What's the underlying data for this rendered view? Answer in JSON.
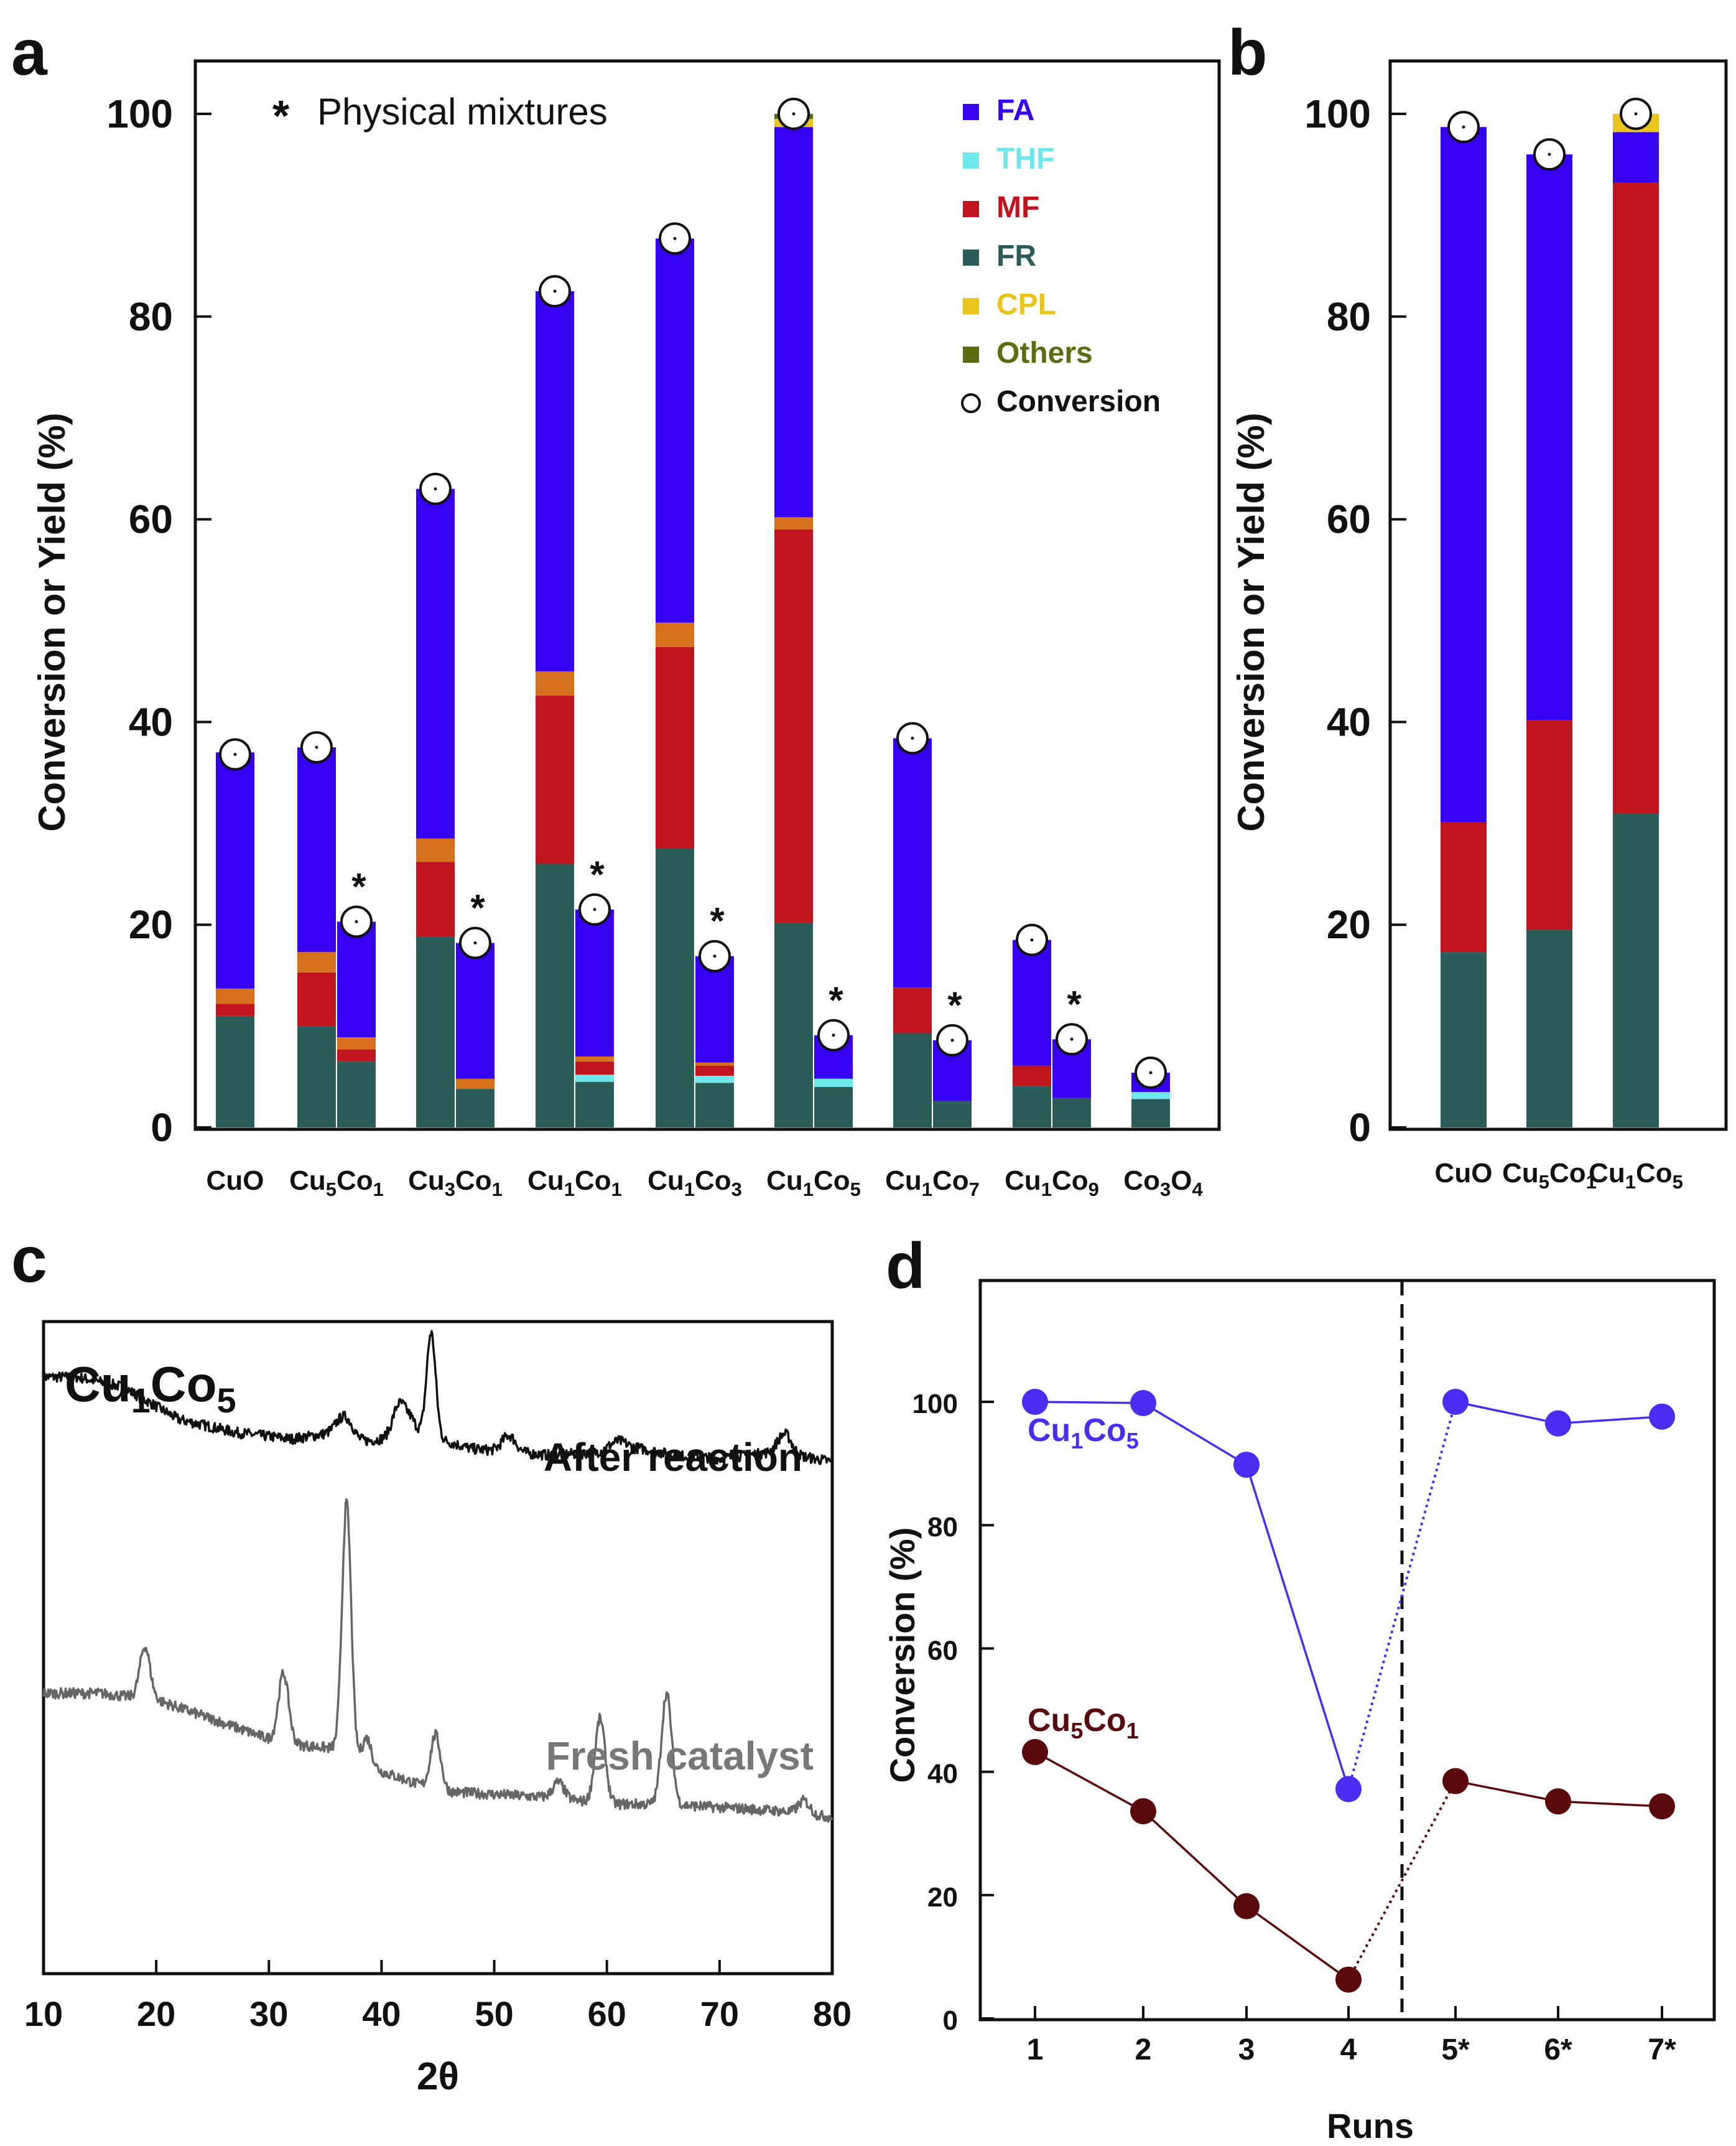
{
  "colors": {
    "FA": "#3600f0",
    "THF": "#6fe8ec",
    "MF": "#c0141e",
    "FR": "#2b5c58",
    "CPL": "#e8c41c",
    "Others": "#5f6b12",
    "OrangeBand": "#d6701c",
    "Cu1Co5_line": "#4b2cf0",
    "Cu5Co1_line": "#5a0a0a",
    "after_line": "#111111",
    "fresh_line": "#666666"
  },
  "chart_data": [
    {
      "panel": "a",
      "type": "bar",
      "stacked": true,
      "ylabel": "Conversion or Yield (%)",
      "ylim": [
        0,
        100
      ],
      "yticks": [
        0,
        20,
        40,
        60,
        80,
        100
      ],
      "annotation": {
        "marker": "*",
        "text": "Physical mixtures"
      },
      "legend": [
        {
          "name": "FA",
          "color_key": "FA",
          "marker": "square"
        },
        {
          "name": "THF",
          "color_key": "THF",
          "marker": "square"
        },
        {
          "name": "MF",
          "color_key": "MF",
          "marker": "square"
        },
        {
          "name": "FR",
          "color_key": "FR",
          "marker": "square"
        },
        {
          "name": "CPL",
          "color_key": "CPL",
          "marker": "square"
        },
        {
          "name": "Others",
          "color_key": "Others",
          "marker": "square"
        },
        {
          "name": "Conversion",
          "color_key": null,
          "marker": "circle"
        }
      ],
      "categories": [
        {
          "base": "CuO",
          "sub1": "",
          "mid": "",
          "sub2": ""
        },
        {
          "base": "Cu",
          "sub1": "5",
          "mid": "Co",
          "sub2": "1"
        },
        {
          "base": "Cu",
          "sub1": "3",
          "mid": "Co",
          "sub2": "1"
        },
        {
          "base": "Cu",
          "sub1": "1",
          "mid": "Co",
          "sub2": "1"
        },
        {
          "base": "Cu",
          "sub1": "1",
          "mid": "Co",
          "sub2": "3"
        },
        {
          "base": "Cu",
          "sub1": "1",
          "mid": "Co",
          "sub2": "5"
        },
        {
          "base": "Cu",
          "sub1": "1",
          "mid": "Co",
          "sub2": "7"
        },
        {
          "base": "Cu",
          "sub1": "1",
          "mid": "Co",
          "sub2": "9"
        },
        {
          "base": "Co",
          "sub1": "3",
          "mid": "O",
          "sub2": "4"
        }
      ],
      "bars": [
        {
          "cat": 0,
          "slot": "main",
          "physical_mixture": false,
          "segments": [
            {
              "s": "FR",
              "v": 11
            },
            {
              "s": "MF",
              "v": 1.2
            },
            {
              "s": "OrangeBand",
              "v": 1.5
            },
            {
              "s": "FA",
              "v": 23.3
            }
          ],
          "conversion": 36.8
        },
        {
          "cat": 1,
          "slot": "main",
          "physical_mixture": false,
          "segments": [
            {
              "s": "FR",
              "v": 10
            },
            {
              "s": "MF",
              "v": 5.3
            },
            {
              "s": "OrangeBand",
              "v": 2
            },
            {
              "s": "FA",
              "v": 20.2
            }
          ],
          "conversion": 37.5
        },
        {
          "cat": 1,
          "slot": "pm",
          "physical_mixture": true,
          "segments": [
            {
              "s": "FR",
              "v": 6.5
            },
            {
              "s": "MF",
              "v": 1.2
            },
            {
              "s": "OrangeBand",
              "v": 1.2
            },
            {
              "s": "FA",
              "v": 11.4
            }
          ],
          "conversion": 20.3
        },
        {
          "cat": 2,
          "slot": "main",
          "physical_mixture": false,
          "segments": [
            {
              "s": "FR",
              "v": 18.8
            },
            {
              "s": "MF",
              "v": 7.4
            },
            {
              "s": "OrangeBand",
              "v": 2.3
            },
            {
              "s": "FA",
              "v": 34.5
            }
          ],
          "conversion": 63
        },
        {
          "cat": 2,
          "slot": "pm",
          "physical_mixture": true,
          "segments": [
            {
              "s": "FR",
              "v": 3.8
            },
            {
              "s": "OrangeBand",
              "v": 1
            },
            {
              "s": "FA",
              "v": 13.4
            }
          ],
          "conversion": 18.2
        },
        {
          "cat": 3,
          "slot": "main",
          "physical_mixture": false,
          "segments": [
            {
              "s": "FR",
              "v": 26
            },
            {
              "s": "MF",
              "v": 16.6
            },
            {
              "s": "OrangeBand",
              "v": 2.4
            },
            {
              "s": "FA",
              "v": 37.5
            }
          ],
          "conversion": 82.5
        },
        {
          "cat": 3,
          "slot": "pm",
          "physical_mixture": true,
          "segments": [
            {
              "s": "FR",
              "v": 4.5
            },
            {
              "s": "THF",
              "v": 0.7
            },
            {
              "s": "MF",
              "v": 1.3
            },
            {
              "s": "OrangeBand",
              "v": 0.5
            },
            {
              "s": "FA",
              "v": 14.5
            }
          ],
          "conversion": 21.5
        },
        {
          "cat": 4,
          "slot": "main",
          "physical_mixture": false,
          "segments": [
            {
              "s": "FR",
              "v": 27.5
            },
            {
              "s": "MF",
              "v": 19.9
            },
            {
              "s": "OrangeBand",
              "v": 2.4
            },
            {
              "s": "FA",
              "v": 37.9
            }
          ],
          "conversion": 87.7
        },
        {
          "cat": 4,
          "slot": "pm",
          "physical_mixture": true,
          "segments": [
            {
              "s": "FR",
              "v": 4.4
            },
            {
              "s": "THF",
              "v": 0.7
            },
            {
              "s": "MF",
              "v": 1
            },
            {
              "s": "OrangeBand",
              "v": 0.3
            },
            {
              "s": "FA",
              "v": 10.5
            }
          ],
          "conversion": 16.9
        },
        {
          "cat": 5,
          "slot": "main",
          "physical_mixture": false,
          "segments": [
            {
              "s": "FR",
              "v": 20.2
            },
            {
              "s": "MF",
              "v": 38.8
            },
            {
              "s": "OrangeBand",
              "v": 1.2
            },
            {
              "s": "FA",
              "v": 38.5
            },
            {
              "s": "CPL",
              "v": 0.8
            },
            {
              "s": "Others",
              "v": 0.5
            }
          ],
          "conversion": 100
        },
        {
          "cat": 5,
          "slot": "pm",
          "physical_mixture": true,
          "segments": [
            {
              "s": "FR",
              "v": 4
            },
            {
              "s": "THF",
              "v": 0.8
            },
            {
              "s": "FA",
              "v": 4.3
            }
          ],
          "conversion": 9.1
        },
        {
          "cat": 6,
          "slot": "main",
          "physical_mixture": false,
          "segments": [
            {
              "s": "FR",
              "v": 9.3
            },
            {
              "s": "MF",
              "v": 4.5
            },
            {
              "s": "FA",
              "v": 24.6
            }
          ],
          "conversion": 38.4
        },
        {
          "cat": 6,
          "slot": "pm",
          "physical_mixture": true,
          "segments": [
            {
              "s": "FR",
              "v": 2.6
            },
            {
              "s": "FA",
              "v": 6
            }
          ],
          "conversion": 8.6
        },
        {
          "cat": 7,
          "slot": "main",
          "physical_mixture": false,
          "segments": [
            {
              "s": "FR",
              "v": 4.1
            },
            {
              "s": "MF",
              "v": 2
            },
            {
              "s": "FA",
              "v": 12.4
            }
          ],
          "conversion": 18.5
        },
        {
          "cat": 7,
          "slot": "pm",
          "physical_mixture": true,
          "segments": [
            {
              "s": "FR",
              "v": 2.9
            },
            {
              "s": "FA",
              "v": 5.8
            }
          ],
          "conversion": 8.7
        },
        {
          "cat": 8,
          "slot": "main",
          "physical_mixture": false,
          "segments": [
            {
              "s": "FR",
              "v": 2.8
            },
            {
              "s": "THF",
              "v": 0.7
            },
            {
              "s": "FA",
              "v": 1.9
            }
          ],
          "conversion": 5.4
        }
      ]
    },
    {
      "panel": "b",
      "type": "bar",
      "stacked": true,
      "ylabel": "Conversion or Yield (%)",
      "ylim": [
        0,
        100
      ],
      "yticks": [
        0,
        20,
        40,
        60,
        80,
        100
      ],
      "categories": [
        {
          "base": "CuO",
          "sub1": "",
          "mid": "",
          "sub2": ""
        },
        {
          "base": "Cu",
          "sub1": "5",
          "mid": "Co",
          "sub2": "1"
        },
        {
          "base": "Cu",
          "sub1": "1",
          "mid": "Co",
          "sub2": "5"
        }
      ],
      "bars": [
        {
          "cat": 0,
          "segments": [
            {
              "s": "FR",
              "v": 17.3
            },
            {
              "s": "MF",
              "v": 12.8
            },
            {
              "s": "FA",
              "v": 68.6
            }
          ],
          "conversion": 98.7
        },
        {
          "cat": 1,
          "segments": [
            {
              "s": "FR",
              "v": 19.5
            },
            {
              "s": "MF",
              "v": 20.7
            },
            {
              "s": "FA",
              "v": 55.8
            }
          ],
          "conversion": 96
        },
        {
          "cat": 2,
          "segments": [
            {
              "s": "FR",
              "v": 31
            },
            {
              "s": "MF",
              "v": 62.2
            },
            {
              "s": "FA",
              "v": 5
            },
            {
              "s": "CPL",
              "v": 1.8
            }
          ],
          "conversion": 100
        }
      ]
    },
    {
      "panel": "c",
      "type": "line",
      "sample": {
        "base": "Cu",
        "sub1": "1",
        "mid": "Co",
        "sub2": "5"
      },
      "xlabel": "2θ",
      "xlim": [
        10,
        80
      ],
      "xticks": [
        10,
        20,
        30,
        40,
        50,
        60,
        70,
        80
      ],
      "ylabel": "",
      "yticks_shown": false,
      "series": [
        {
          "name": "After reaction",
          "color_key": "after_line",
          "baseline": [
            [
              10,
              91.5
            ],
            [
              13,
              91.5
            ],
            [
              17,
              90
            ],
            [
              22,
              85
            ],
            [
              27,
              83
            ],
            [
              32,
              82
            ],
            [
              36,
              83
            ],
            [
              38,
              81.5
            ],
            [
              40,
              82
            ],
            [
              42,
              83.5
            ],
            [
              45,
              82
            ],
            [
              48,
              80.5
            ],
            [
              55,
              79.5
            ],
            [
              60,
              80
            ],
            [
              63,
              80.5
            ],
            [
              66,
              79.5
            ],
            [
              70,
              79
            ],
            [
              75,
              80
            ],
            [
              80,
              78.5
            ]
          ],
          "peaks": [
            [
              36.8,
              3,
              0.7
            ],
            [
              41.5,
              4,
              0.5
            ],
            [
              42.5,
              2,
              0.5
            ],
            [
              44.4,
              16,
              0.4
            ],
            [
              51.3,
              2.5,
              0.6
            ],
            [
              61,
              1.5,
              0.8
            ],
            [
              75.8,
              3,
              0.6
            ]
          ],
          "noise": 0.8
        },
        {
          "name": "Fresh catalyst",
          "color_key": "fresh_line",
          "baseline": [
            [
              10,
              43
            ],
            [
              15,
              43
            ],
            [
              20,
              42
            ],
            [
              25,
              39
            ],
            [
              30,
              36
            ],
            [
              33,
              35
            ],
            [
              36,
              34.5
            ],
            [
              40,
              31
            ],
            [
              45,
              28
            ],
            [
              50,
              27.5
            ],
            [
              55,
              27
            ],
            [
              60,
              26
            ],
            [
              65,
              26
            ],
            [
              70,
              25.5
            ],
            [
              75,
              25
            ],
            [
              80,
              24
            ]
          ],
          "peaks": [
            [
              19,
              8,
              0.45
            ],
            [
              31.3,
              10.5,
              0.45
            ],
            [
              36.9,
              38.5,
              0.4
            ],
            [
              38.7,
              4,
              0.4
            ],
            [
              44.8,
              8.5,
              0.45
            ],
            [
              55.7,
              2.5,
              0.5
            ],
            [
              59.4,
              13,
              0.45
            ],
            [
              65.3,
              17,
              0.45
            ],
            [
              77.5,
              2,
              0.5
            ]
          ],
          "noise": 0.8
        }
      ]
    },
    {
      "panel": "d",
      "type": "line",
      "xlabel": "Runs",
      "ylabel": "Conversion (%)",
      "ylim": [
        0,
        115
      ],
      "yticks": [
        0,
        20,
        40,
        60,
        80,
        100
      ],
      "x": [
        "1",
        "2",
        "3",
        "4",
        "5*",
        "6*",
        "7*"
      ],
      "divider_between_runs": [
        4,
        5
      ],
      "series": [
        {
          "name_base": "Cu",
          "sub1": "1",
          "name_mid": "Co",
          "sub2": "5",
          "color_key": "Cu1Co5_line",
          "values": [
            100,
            99.8,
            89.8,
            37.2,
            100,
            96.5,
            97.6
          ]
        },
        {
          "name_base": "Cu",
          "sub1": "5",
          "name_mid": "Co",
          "sub2": "1",
          "color_key": "Cu5Co1_line",
          "values": [
            43.2,
            33.6,
            18.2,
            6.3,
            38.5,
            35.2,
            34.4
          ]
        }
      ]
    }
  ],
  "panel_labels": {
    "a": "a",
    "b": "b",
    "c": "c",
    "d": "d"
  }
}
